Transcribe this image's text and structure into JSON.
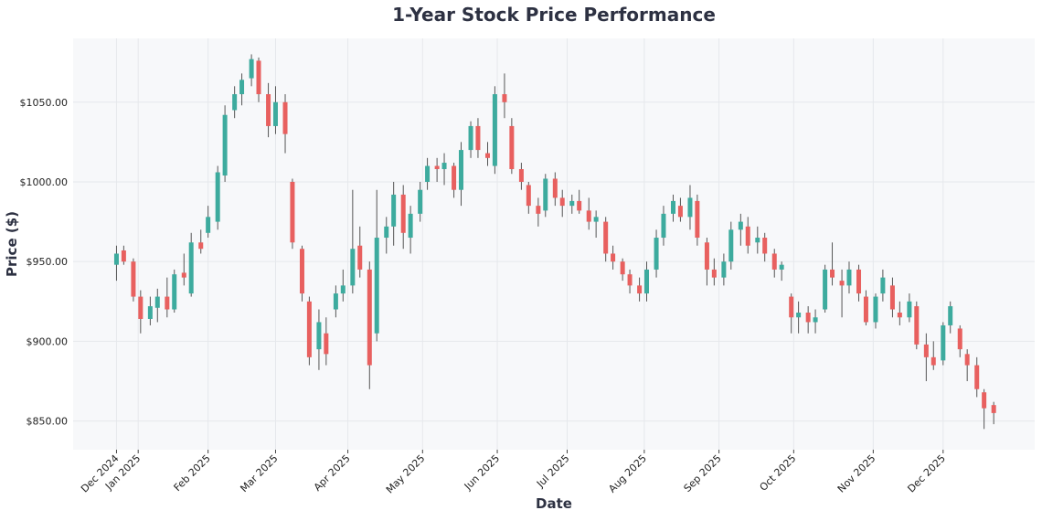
{
  "chart_data": {
    "type": "candlestick",
    "title": "1-Year Stock Price Performance",
    "xlabel": "Date",
    "ylabel": "Price ($)",
    "ylim": [
      832,
      1090
    ],
    "xlim": [
      "2024-12-05",
      "2026-01-08"
    ],
    "grid": true,
    "colors": {
      "up": "#3dab9e",
      "down": "#e8605f",
      "wick": "#555555",
      "plot_bg": "#f7f8fa",
      "title": "#2d3142"
    },
    "y_ticks": [
      {
        "value": 850,
        "label": "$850.00"
      },
      {
        "value": 900,
        "label": "$900.00"
      },
      {
        "value": 950,
        "label": "$950.00"
      },
      {
        "value": 1000,
        "label": "$1000.00"
      },
      {
        "value": 1050,
        "label": "$1050.00"
      }
    ],
    "x_ticks": [
      {
        "date": "2024-12-23",
        "label": "Dec 2024"
      },
      {
        "date": "2025-01-01",
        "label": "Jan 2025"
      },
      {
        "date": "2025-01-30",
        "label": "Feb 2025"
      },
      {
        "date": "2025-02-27",
        "label": "Mar 2025"
      },
      {
        "date": "2025-03-29",
        "label": "Apr 2025"
      },
      {
        "date": "2025-04-29",
        "label": "May 2025"
      },
      {
        "date": "2025-05-30",
        "label": "Jun 2025"
      },
      {
        "date": "2025-06-28",
        "label": "Jul 2025"
      },
      {
        "date": "2025-07-30",
        "label": "Aug 2025"
      },
      {
        "date": "2025-08-30",
        "label": "Sep 2025"
      },
      {
        "date": "2025-09-30",
        "label": "Oct 2025"
      },
      {
        "date": "2025-11-02",
        "label": "Nov 2025"
      },
      {
        "date": "2025-12-01",
        "label": "Dec 2025"
      }
    ],
    "candles": [
      [
        "2024-12-23",
        948,
        960,
        938,
        955
      ],
      [
        "2024-12-26",
        957,
        960,
        948,
        950
      ],
      [
        "2024-12-30",
        950,
        952,
        925,
        928
      ],
      [
        "2025-01-02",
        928,
        932,
        905,
        914
      ],
      [
        "2025-01-06",
        914,
        928,
        910,
        922
      ],
      [
        "2025-01-09",
        921,
        933,
        912,
        928
      ],
      [
        "2025-01-13",
        928,
        940,
        915,
        920
      ],
      [
        "2025-01-16",
        920,
        945,
        918,
        942
      ],
      [
        "2025-01-20",
        943,
        955,
        935,
        940
      ],
      [
        "2025-01-23",
        930,
        968,
        928,
        962
      ],
      [
        "2025-01-27",
        962,
        970,
        955,
        958
      ],
      [
        "2025-01-30",
        968,
        985,
        965,
        978
      ],
      [
        "2025-02-03",
        975,
        1010,
        970,
        1006
      ],
      [
        "2025-02-06",
        1004,
        1048,
        1000,
        1042
      ],
      [
        "2025-02-10",
        1045,
        1060,
        1040,
        1055
      ],
      [
        "2025-02-13",
        1055,
        1068,
        1048,
        1064
      ],
      [
        "2025-02-17",
        1065,
        1080,
        1060,
        1077
      ],
      [
        "2025-02-20",
        1076,
        1078,
        1050,
        1055
      ],
      [
        "2025-02-24",
        1055,
        1062,
        1028,
        1035
      ],
      [
        "2025-02-27",
        1035,
        1060,
        1030,
        1050
      ],
      [
        "2025-03-03",
        1050,
        1055,
        1018,
        1030
      ],
      [
        "2025-03-06",
        1000,
        1002,
        958,
        962
      ],
      [
        "2025-03-10",
        958,
        960,
        925,
        930
      ],
      [
        "2025-03-13",
        925,
        928,
        885,
        890
      ],
      [
        "2025-03-17",
        895,
        920,
        882,
        912
      ],
      [
        "2025-03-20",
        905,
        915,
        885,
        892
      ],
      [
        "2025-03-24",
        920,
        935,
        915,
        930
      ],
      [
        "2025-03-27",
        930,
        945,
        925,
        935
      ],
      [
        "2025-03-31",
        935,
        995,
        930,
        958
      ],
      [
        "2025-04-03",
        960,
        972,
        940,
        945
      ],
      [
        "2025-04-07",
        945,
        950,
        870,
        885
      ],
      [
        "2025-04-10",
        905,
        995,
        900,
        965
      ],
      [
        "2025-04-14",
        965,
        978,
        955,
        972
      ],
      [
        "2025-04-17",
        972,
        1000,
        960,
        992
      ],
      [
        "2025-04-21",
        992,
        998,
        958,
        968
      ],
      [
        "2025-04-24",
        965,
        985,
        955,
        980
      ],
      [
        "2025-04-28",
        980,
        1000,
        975,
        995
      ],
      [
        "2025-05-01",
        1000,
        1015,
        995,
        1010
      ],
      [
        "2025-05-05",
        1010,
        1015,
        1000,
        1008
      ],
      [
        "2025-05-08",
        1008,
        1018,
        998,
        1012
      ],
      [
        "2025-05-12",
        1010,
        1012,
        990,
        995
      ],
      [
        "2025-05-15",
        995,
        1025,
        985,
        1020
      ],
      [
        "2025-05-19",
        1020,
        1038,
        1015,
        1035
      ],
      [
        "2025-05-22",
        1035,
        1040,
        1015,
        1020
      ],
      [
        "2025-05-26",
        1018,
        1025,
        1010,
        1015
      ],
      [
        "2025-05-29",
        1010,
        1060,
        1005,
        1055
      ],
      [
        "2025-06-02",
        1055,
        1068,
        1040,
        1050
      ],
      [
        "2025-06-05",
        1035,
        1040,
        1005,
        1008
      ],
      [
        "2025-06-09",
        1008,
        1012,
        995,
        1000
      ],
      [
        "2025-06-12",
        998,
        1000,
        980,
        985
      ],
      [
        "2025-06-16",
        985,
        990,
        972,
        980
      ],
      [
        "2025-06-19",
        982,
        1005,
        978,
        1002
      ],
      [
        "2025-06-23",
        1002,
        1006,
        985,
        990
      ],
      [
        "2025-06-26",
        990,
        995,
        978,
        985
      ],
      [
        "2025-06-30",
        985,
        992,
        980,
        988
      ],
      [
        "2025-07-03",
        988,
        995,
        980,
        982
      ],
      [
        "2025-07-07",
        982,
        990,
        970,
        975
      ],
      [
        "2025-07-10",
        975,
        982,
        965,
        978
      ],
      [
        "2025-07-14",
        975,
        978,
        950,
        955
      ],
      [
        "2025-07-17",
        955,
        960,
        945,
        950
      ],
      [
        "2025-07-21",
        950,
        952,
        938,
        942
      ],
      [
        "2025-07-24",
        942,
        945,
        930,
        935
      ],
      [
        "2025-07-28",
        935,
        940,
        925,
        930
      ],
      [
        "2025-07-31",
        930,
        950,
        925,
        945
      ],
      [
        "2025-08-04",
        945,
        970,
        940,
        965
      ],
      [
        "2025-08-07",
        965,
        985,
        960,
        980
      ],
      [
        "2025-08-11",
        980,
        992,
        975,
        988
      ],
      [
        "2025-08-14",
        985,
        990,
        975,
        978
      ],
      [
        "2025-08-18",
        978,
        998,
        970,
        990
      ],
      [
        "2025-08-21",
        988,
        992,
        960,
        965
      ],
      [
        "2025-08-25",
        962,
        965,
        935,
        945
      ],
      [
        "2025-08-28",
        945,
        952,
        935,
        940
      ],
      [
        "2025-09-01",
        940,
        955,
        935,
        950
      ],
      [
        "2025-09-04",
        950,
        975,
        945,
        970
      ],
      [
        "2025-09-08",
        970,
        980,
        960,
        975
      ],
      [
        "2025-09-11",
        972,
        978,
        955,
        960
      ],
      [
        "2025-09-15",
        962,
        972,
        955,
        965
      ],
      [
        "2025-09-18",
        965,
        968,
        950,
        955
      ],
      [
        "2025-09-22",
        955,
        958,
        940,
        945
      ],
      [
        "2025-09-25",
        945,
        950,
        938,
        948
      ],
      [
        "2025-09-29",
        928,
        930,
        905,
        915
      ],
      [
        "2025-10-02",
        915,
        925,
        905,
        918
      ],
      [
        "2025-10-06",
        918,
        922,
        905,
        912
      ],
      [
        "2025-10-09",
        912,
        920,
        905,
        915
      ],
      [
        "2025-10-13",
        920,
        948,
        918,
        945
      ],
      [
        "2025-10-16",
        945,
        962,
        935,
        940
      ],
      [
        "2025-10-20",
        938,
        945,
        915,
        935
      ],
      [
        "2025-10-23",
        935,
        950,
        930,
        945
      ],
      [
        "2025-10-27",
        945,
        948,
        925,
        930
      ],
      [
        "2025-10-30",
        928,
        932,
        910,
        912
      ],
      [
        "2025-11-03",
        912,
        930,
        908,
        928
      ],
      [
        "2025-11-06",
        930,
        945,
        925,
        940
      ],
      [
        "2025-11-10",
        935,
        940,
        915,
        920
      ],
      [
        "2025-11-13",
        918,
        925,
        910,
        915
      ],
      [
        "2025-11-17",
        915,
        930,
        912,
        925
      ],
      [
        "2025-11-20",
        922,
        925,
        895,
        898
      ],
      [
        "2025-11-24",
        898,
        905,
        875,
        890
      ],
      [
        "2025-11-27",
        890,
        900,
        882,
        885
      ],
      [
        "2025-12-01",
        888,
        912,
        885,
        910
      ],
      [
        "2025-12-04",
        910,
        925,
        905,
        922
      ],
      [
        "2025-12-08",
        908,
        910,
        890,
        895
      ],
      [
        "2025-12-11",
        892,
        895,
        875,
        885
      ],
      [
        "2025-12-15",
        885,
        890,
        865,
        870
      ],
      [
        "2025-12-18",
        868,
        870,
        845,
        858
      ],
      [
        "2025-12-22",
        860,
        862,
        848,
        855
      ]
    ]
  }
}
